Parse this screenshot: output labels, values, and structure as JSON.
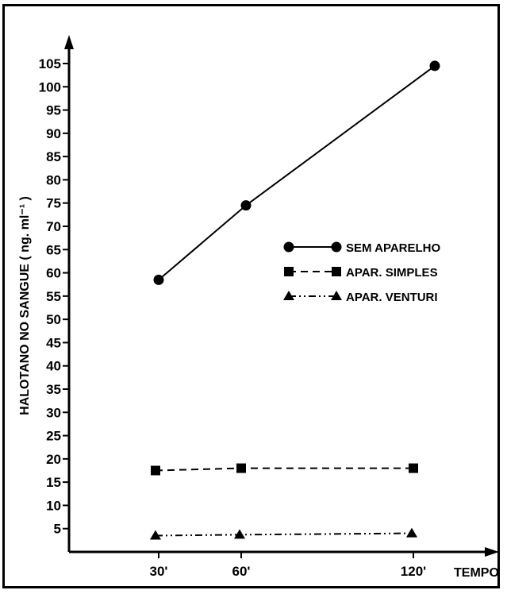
{
  "chart_data": {
    "type": "line",
    "xlabel": "TEMPO",
    "ylabel": "HALOTANO NO SANGUE ( ng. ml⁻¹ )",
    "x_ticks": [
      "30'",
      "60'",
      "120'"
    ],
    "y_ticks": [
      5,
      10,
      15,
      20,
      25,
      30,
      35,
      40,
      45,
      50,
      55,
      60,
      65,
      70,
      75,
      80,
      85,
      90,
      95,
      100,
      105
    ],
    "ylim": [
      0,
      110
    ],
    "grid": false,
    "legend_position": "right-middle",
    "series": [
      {
        "name": "SEM APARELHO",
        "marker": "circle",
        "line": "solid",
        "points": [
          {
            "x": "30'",
            "y": 58.5
          },
          {
            "x": "60'",
            "y": 74.5
          },
          {
            "x": "120'",
            "y": 104.5
          }
        ]
      },
      {
        "name": "APAR. SIMPLES",
        "marker": "square",
        "line": "dashed",
        "points": [
          {
            "x": "30'",
            "y": 17.5
          },
          {
            "x": "60'",
            "y": 18
          },
          {
            "x": "120'",
            "y": 18
          }
        ]
      },
      {
        "name": "APAR. VENTURI",
        "marker": "triangle",
        "line": "dash-dot-dot",
        "points": [
          {
            "x": "30'",
            "y": 3.5
          },
          {
            "x": "60'",
            "y": 3.7
          },
          {
            "x": "120'",
            "y": 4
          }
        ]
      }
    ]
  }
}
